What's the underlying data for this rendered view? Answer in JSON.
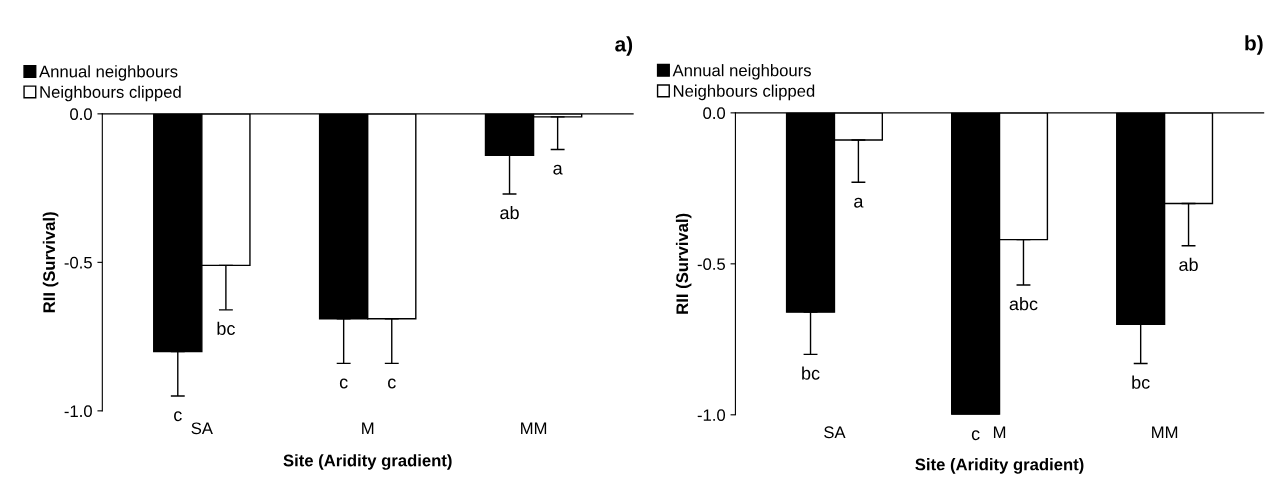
{
  "chart_data": [
    {
      "type": "bar",
      "title": "a)",
      "xlabel": "Site (Aridity gradient)",
      "ylabel": "RII (Survival)",
      "categories": [
        "SA",
        "M",
        "MM"
      ],
      "ylim": [
        -1.0,
        0.0
      ],
      "yticks": [
        {
          "value": -1.0,
          "label": "-1.0"
        },
        {
          "value": -0.5,
          "label": "-0.5"
        },
        {
          "value": 0.0,
          "label": "0.0"
        }
      ],
      "legend": "top left",
      "grid": false,
      "series": [
        {
          "name": "Annual neighbours",
          "color": "#000000",
          "values": [
            -0.8,
            -0.69,
            -0.14
          ],
          "errors": [
            [
              -0.95,
              -0.8
            ],
            [
              -0.84,
              -0.69
            ],
            [
              -0.27,
              -0.14
            ]
          ]
        },
        {
          "name": "Neighbours clipped",
          "color": "#ffffff",
          "values": [
            -0.51,
            -0.69,
            -0.01
          ],
          "errors": [
            [
              -0.66,
              -0.51
            ],
            [
              -0.84,
              -0.69
            ],
            [
              -0.12,
              -0.01
            ]
          ]
        }
      ],
      "annotations": [
        "c",
        "bc",
        "c",
        "c",
        "ab",
        "a"
      ]
    },
    {
      "type": "bar",
      "title": "b)",
      "xlabel": "Site (Aridity gradient)",
      "ylabel": "RII (Survival)",
      "categories": [
        "SA",
        "M",
        "MM"
      ],
      "ylim": [
        -1.0,
        0.0
      ],
      "yticks": [
        {
          "value": -1.0,
          "label": "-1.0"
        },
        {
          "value": -0.5,
          "label": "-0.5"
        },
        {
          "value": 0.0,
          "label": "0.0"
        }
      ],
      "legend": "top left",
      "grid": false,
      "series": [
        {
          "name": "Annual neighbours",
          "color": "#000000",
          "values": [
            -0.66,
            -1.0,
            -0.7
          ],
          "errors": [
            [
              -0.8,
              -0.66
            ],
            null,
            [
              -0.83,
              -0.7
            ]
          ]
        },
        {
          "name": "Neighbours clipped",
          "color": "#ffffff",
          "values": [
            -0.09,
            -0.42,
            -0.3
          ],
          "errors": [
            [
              -0.23,
              -0.09
            ],
            [
              -0.57,
              -0.42
            ],
            [
              -0.44,
              -0.3
            ]
          ]
        }
      ],
      "annotations": [
        "bc",
        "a",
        "c",
        "abc",
        "bc",
        "ab"
      ]
    }
  ]
}
